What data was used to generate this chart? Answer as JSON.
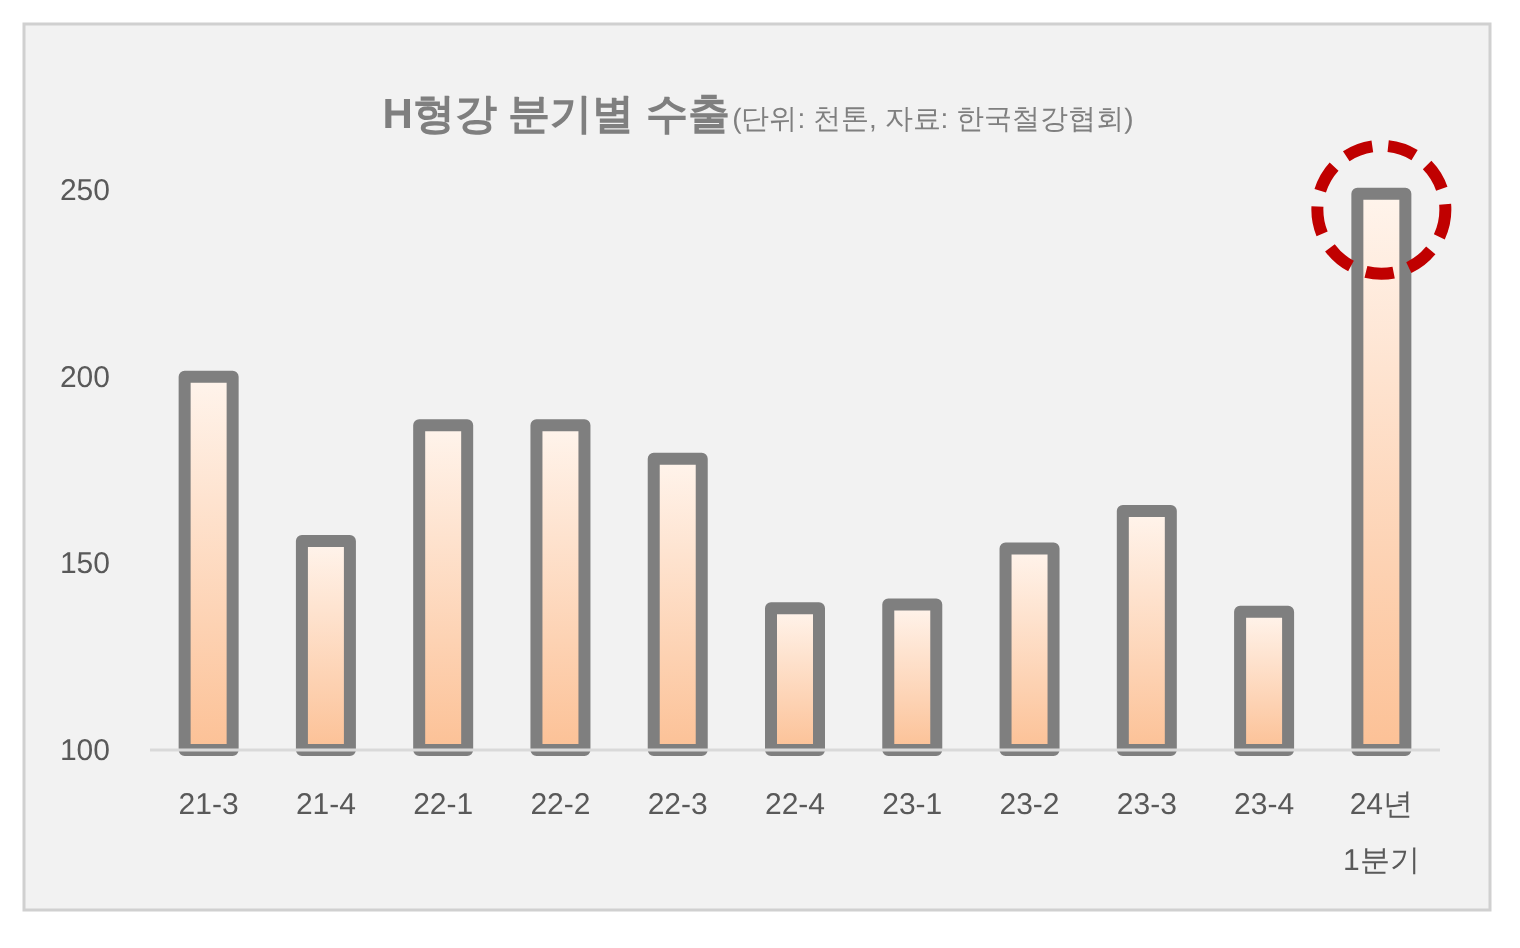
{
  "chart_data": {
    "type": "bar",
    "title": "H형강 분기별 수출",
    "subtitle": "(단위: 천톤, 자료: 한국철강협회)",
    "categories": [
      "21-3",
      "21-4",
      "22-1",
      "22-2",
      "22-3",
      "22-4",
      "23-1",
      "23-2",
      "23-3",
      "23-4",
      "24년\n1분기"
    ],
    "values": [
      200,
      156,
      187,
      187,
      178,
      138,
      139,
      154,
      164,
      137,
      249
    ],
    "color": "#7f7f7f",
    "ylim": [
      100,
      250
    ],
    "yticks": [
      100,
      150,
      200,
      250
    ],
    "grid": false
  }
}
